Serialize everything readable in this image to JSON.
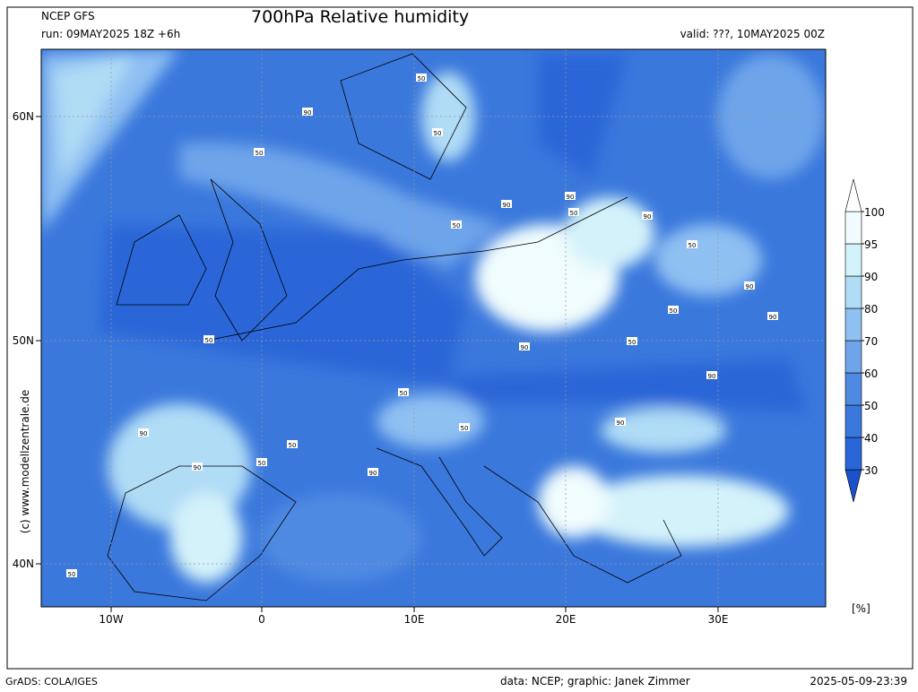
{
  "header": {
    "model": "NCEP GFS",
    "run": "run: 09MAY2025 18Z +6h",
    "title": "700hPa Relative humidity",
    "valid": "valid: ???, 10MAY2025 00Z"
  },
  "map": {
    "lat_labels": [
      "60N",
      "50N",
      "40N"
    ],
    "lon_labels": [
      "10W",
      "0",
      "10E",
      "20E",
      "30E"
    ],
    "side_note": "(c) www.modellzentrale.de",
    "contour_labels": [
      "50",
      "90",
      "50",
      "50",
      "90",
      "50",
      "90",
      "50",
      "90",
      "50",
      "90",
      "50",
      "90",
      "50",
      "90",
      "50",
      "90",
      "50",
      "90",
      "50",
      "90",
      "50",
      "90",
      "50",
      "90",
      "50"
    ]
  },
  "colorbar": {
    "levels": [
      30,
      40,
      50,
      60,
      70,
      80,
      90,
      95,
      100
    ],
    "colors": [
      "#1a50c8",
      "#2a66d8",
      "#3a78dc",
      "#4f8ae2",
      "#6ea4ea",
      "#8fc0f2",
      "#b0dcf6",
      "#d4f2fa",
      "#f0fcfd",
      "#ffffff"
    ],
    "unit": "[%]"
  },
  "footer": {
    "grads": "GrADS: COLA/IGES",
    "credit": "data: NCEP; graphic: Janek Zimmer",
    "timestamp": "2025-05-09-23:39"
  }
}
